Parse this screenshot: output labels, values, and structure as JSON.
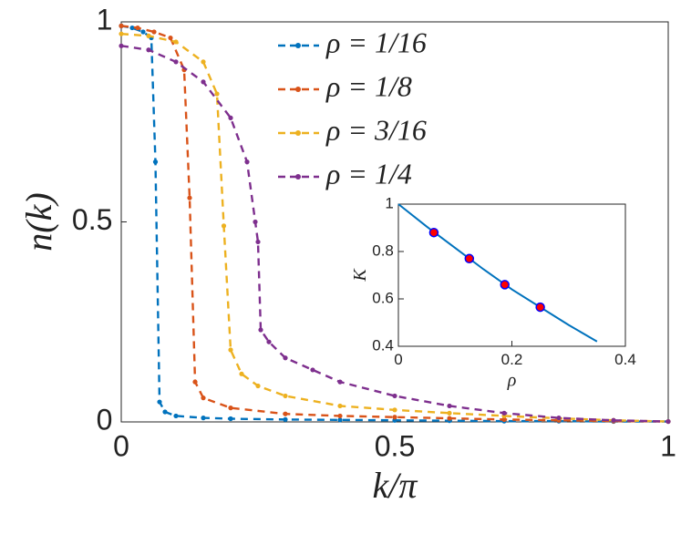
{
  "chart_data": [
    {
      "type": "line",
      "xlabel": "k/π",
      "ylabel": "n(k)",
      "xlim": [
        0,
        1
      ],
      "ylim": [
        0,
        1
      ],
      "xticks": [
        0,
        0.5,
        1
      ],
      "yticks": [
        0,
        0.5,
        1
      ],
      "series": [
        {
          "name": "ρ = 1/16",
          "color": "#0072bd",
          "x": [
            0,
            0.02,
            0.04,
            0.055,
            0.0625,
            0.07,
            0.08,
            0.1,
            0.15,
            0.2,
            0.3,
            0.4,
            0.5,
            0.6,
            0.7,
            0.8,
            0.9,
            1
          ],
          "values": [
            0.99,
            0.985,
            0.975,
            0.96,
            0.65,
            0.05,
            0.025,
            0.015,
            0.01,
            0.008,
            0.006,
            0.005,
            0.004,
            0.003,
            0.002,
            0.002,
            0.001,
            0.001
          ]
        },
        {
          "name": "ρ = 1/8",
          "color": "#d95319",
          "x": [
            0,
            0.03,
            0.06,
            0.09,
            0.115,
            0.125,
            0.135,
            0.15,
            0.2,
            0.3,
            0.4,
            0.5,
            0.6,
            0.7,
            0.8,
            0.9,
            1
          ],
          "values": [
            0.99,
            0.985,
            0.975,
            0.96,
            0.88,
            0.56,
            0.1,
            0.06,
            0.035,
            0.02,
            0.015,
            0.012,
            0.009,
            0.006,
            0.004,
            0.002,
            0.001
          ]
        },
        {
          "name": "ρ = 3/16",
          "color": "#edb120",
          "x": [
            0,
            0.05,
            0.1,
            0.15,
            0.175,
            0.1875,
            0.2,
            0.22,
            0.25,
            0.3,
            0.4,
            0.5,
            0.6,
            0.7,
            0.8,
            0.9,
            1
          ],
          "values": [
            0.97,
            0.965,
            0.95,
            0.9,
            0.82,
            0.49,
            0.18,
            0.12,
            0.09,
            0.065,
            0.04,
            0.03,
            0.022,
            0.015,
            0.009,
            0.004,
            0.001
          ]
        },
        {
          "name": "ρ = 1/4",
          "color": "#7e2f8e",
          "x": [
            0,
            0.05,
            0.1,
            0.15,
            0.2,
            0.23,
            0.245,
            0.25,
            0.255,
            0.27,
            0.3,
            0.35,
            0.4,
            0.5,
            0.6,
            0.7,
            0.8,
            0.9,
            1
          ],
          "values": [
            0.94,
            0.93,
            0.9,
            0.85,
            0.76,
            0.65,
            0.5,
            0.45,
            0.23,
            0.2,
            0.16,
            0.13,
            0.1,
            0.065,
            0.04,
            0.022,
            0.01,
            0.004,
            0.001
          ]
        }
      ]
    },
    {
      "type": "line",
      "xlabel": "ρ",
      "ylabel": "K",
      "xlim": [
        0,
        0.4
      ],
      "ylim": [
        0.4,
        1
      ],
      "xticks": [
        0,
        0.2,
        0.4
      ],
      "yticks": [
        0.4,
        0.6,
        0.8,
        1
      ],
      "series": [
        {
          "color": "#0072bd",
          "style": "line",
          "x": [
            0,
            0.05,
            0.1,
            0.15,
            0.2,
            0.25,
            0.3,
            0.35
          ],
          "values": [
            1,
            0.905,
            0.815,
            0.725,
            0.64,
            0.565,
            0.49,
            0.42
          ]
        },
        {
          "color": "#ff0000",
          "style": "markers",
          "x": [
            0.0625,
            0.125,
            0.1875,
            0.25
          ],
          "values": [
            0.88,
            0.77,
            0.66,
            0.565
          ]
        }
      ]
    }
  ]
}
